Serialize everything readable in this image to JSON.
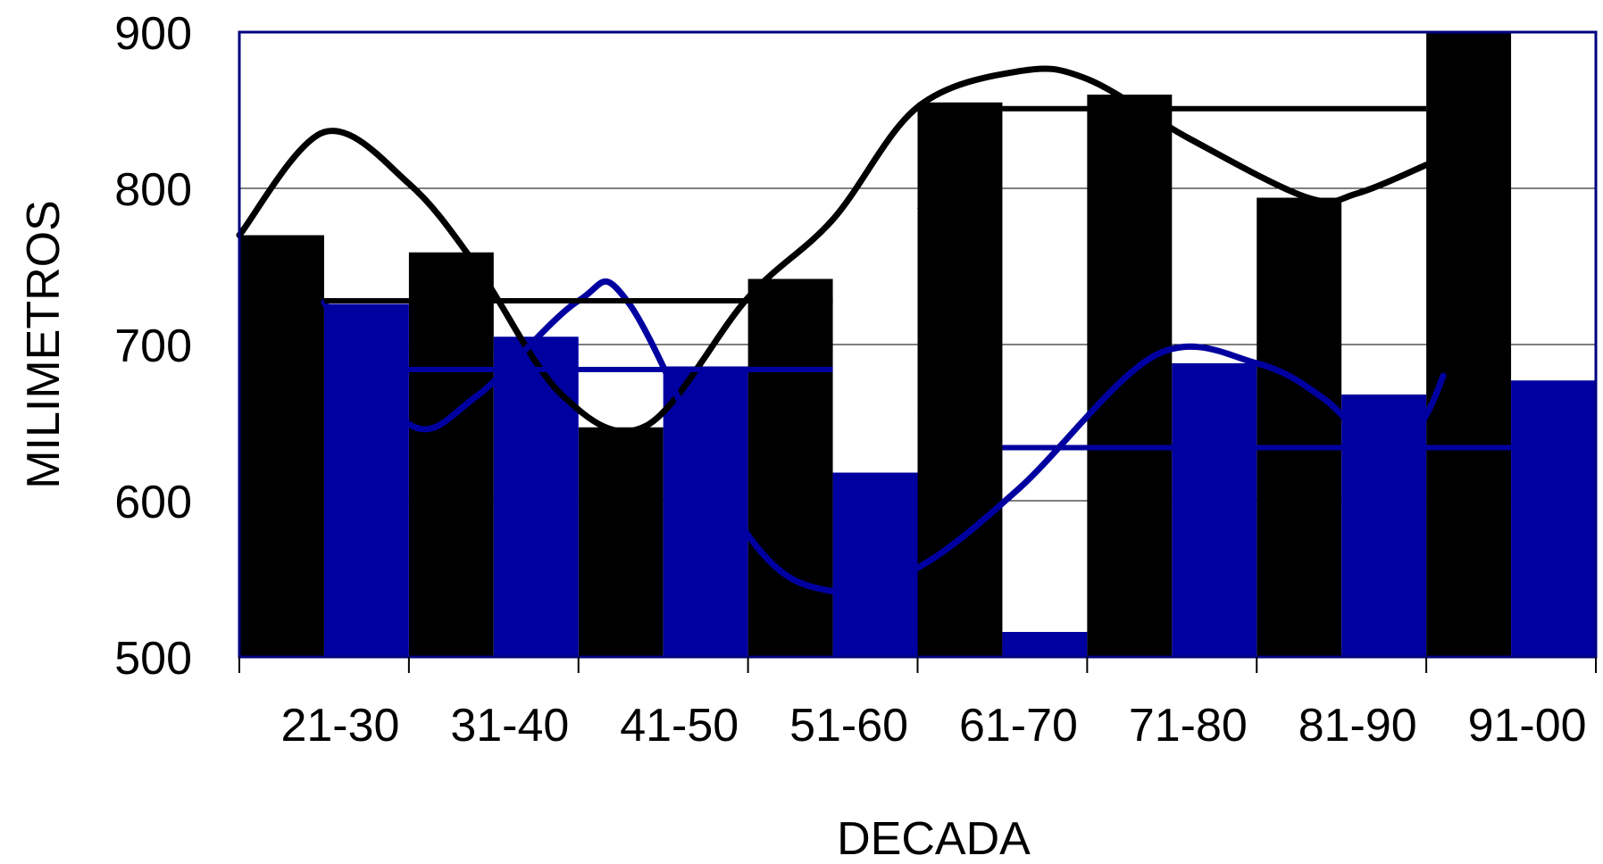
{
  "chart_data": {
    "type": "bar",
    "title": "",
    "xlabel": "DECADA",
    "ylabel": "MILIMETROS",
    "categories": [
      "21-30",
      "31-40",
      "41-50",
      "51-60",
      "61-70",
      "71-80",
      "81-90",
      "91-00"
    ],
    "ylim": [
      500,
      900
    ],
    "yticks": [
      "500",
      "600",
      "700",
      "800",
      "900"
    ],
    "grid": true,
    "legend": "none",
    "series": [
      {
        "color": "#000000",
        "values": [
          770,
          759,
          647,
          742,
          855,
          860,
          794,
          900
        ]
      },
      {
        "color": "#0000A0",
        "values": [
          726,
          705,
          686,
          618,
          516,
          688,
          668,
          677
        ]
      }
    ],
    "overlays": [
      {
        "style": "curve",
        "color": "#000000",
        "points": [
          [
            0,
            770
          ],
          [
            0.5,
            836
          ],
          [
            1.0,
            803
          ],
          [
            1.4,
            750
          ],
          [
            1.9,
            668
          ],
          [
            2.4,
            648
          ],
          [
            3.0,
            730
          ],
          [
            3.5,
            780
          ],
          [
            4.0,
            852
          ],
          [
            4.6,
            875
          ],
          [
            5.0,
            870
          ],
          [
            5.6,
            832
          ],
          [
            6.3,
            794
          ],
          [
            6.6,
            797
          ],
          [
            7.0,
            815
          ]
        ]
      },
      {
        "style": "curve",
        "color": "#0000A0",
        "points": [
          [
            0.5,
            727
          ],
          [
            1.0,
            649
          ],
          [
            1.4,
            667
          ],
          [
            2.0,
            728
          ],
          [
            2.3,
            726
          ],
          [
            3.0,
            578
          ],
          [
            3.5,
            542
          ],
          [
            4.0,
            557
          ],
          [
            4.6,
            608
          ],
          [
            5.4,
            693
          ],
          [
            6.0,
            688
          ],
          [
            6.4,
            665
          ],
          [
            6.8,
            625
          ],
          [
            7.0,
            655
          ],
          [
            7.1,
            680
          ]
        ]
      },
      {
        "style": "segment",
        "color": "#000000",
        "from": [
          0.5,
          728
        ],
        "to": [
          3.5,
          728
        ]
      },
      {
        "style": "segment",
        "color": "#000000",
        "from": [
          4.5,
          851
        ],
        "to": [
          7.0,
          851
        ]
      },
      {
        "style": "segment",
        "color": "#0000A0",
        "from": [
          0.5,
          684
        ],
        "to": [
          3.5,
          684
        ]
      },
      {
        "style": "segment",
        "color": "#0000A0",
        "from": [
          4.5,
          634
        ],
        "to": [
          8.0,
          634
        ]
      },
      {
        "style": "thin",
        "color": "#000000",
        "from": [
          4.0,
          787
        ],
        "to": [
          4.5,
          852
        ]
      },
      {
        "style": "thin",
        "color": "#000000",
        "from": [
          4.0,
          659
        ],
        "to": [
          4.5,
          634
        ]
      }
    ]
  }
}
